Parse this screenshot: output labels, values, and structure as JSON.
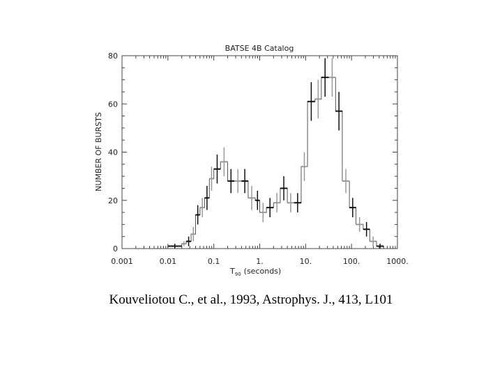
{
  "chart_data": {
    "type": "bar",
    "title": "BATSE 4B Catalog",
    "xlabel": "T",
    "xlabel_sub": "90",
    "xlabel_unit": "(seconds)",
    "ylabel": "NUMBER OF BURSTS",
    "xscale": "log",
    "xlim": [
      0.001,
      1000
    ],
    "ylim": [
      0,
      80
    ],
    "xticks": [
      "0.001",
      "0.01",
      "0.1",
      "1.",
      "10.",
      "100.",
      "1000."
    ],
    "yticks": [
      "0",
      "20",
      "40",
      "60",
      "80"
    ],
    "grid": false,
    "bin_edges": [
      0.01,
      0.02,
      0.025,
      0.032,
      0.04,
      0.05,
      0.063,
      0.08,
      0.1,
      0.14,
      0.2,
      0.28,
      0.4,
      0.56,
      0.8,
      1.0,
      1.4,
      2.0,
      2.8,
      4.0,
      5.6,
      8.0,
      11,
      16,
      22,
      32,
      45,
      63,
      90,
      125,
      180,
      250,
      350,
      500
    ],
    "counts": [
      1,
      2,
      3,
      6,
      14,
      17,
      21,
      29,
      33,
      36,
      28,
      28,
      28,
      21,
      20,
      15,
      17,
      19,
      25,
      19,
      19,
      34,
      61,
      62,
      71,
      71,
      57,
      28,
      17,
      10,
      8,
      3,
      1
    ],
    "error_bars": [
      1,
      1,
      2,
      3,
      4,
      4,
      5,
      5,
      6,
      6,
      5,
      5,
      5,
      5,
      4,
      4,
      4,
      4,
      5,
      4,
      4,
      6,
      8,
      8,
      8,
      8,
      8,
      5,
      4,
      3,
      3,
      2,
      1
    ]
  },
  "caption": "Kouveliotou C., et al., 1993, Astrophys. J., 413, L101"
}
